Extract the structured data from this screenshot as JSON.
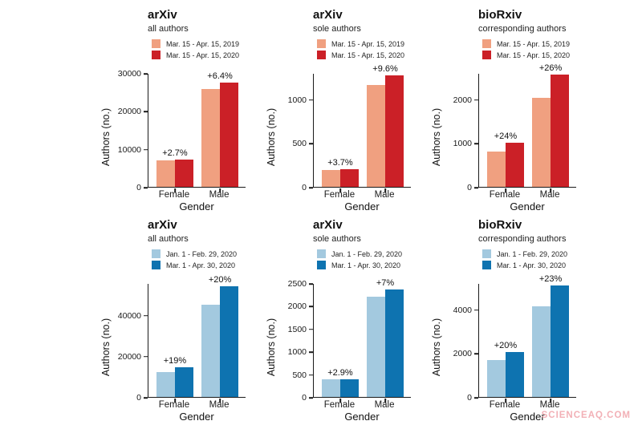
{
  "watermark": "SCIENCEAQ.COM",
  "chart_data": [
    {
      "type": "bar",
      "title": "arXiv",
      "subtitle": "all authors",
      "xlabel": "Gender",
      "ylabel": "Authors (no.)",
      "categories": [
        "Female",
        "Male"
      ],
      "series": [
        {
          "name": "Mar. 15 - Apr. 15, 2019",
          "color": "#F0A080",
          "values": [
            6900,
            25800
          ]
        },
        {
          "name": "Mar. 15 - Apr. 15, 2020",
          "color": "#CB2027",
          "values": [
            7090,
            27450
          ]
        }
      ],
      "pct_change": [
        "+2.7%",
        "+6.4%"
      ],
      "yticks": [
        0,
        10000,
        20000,
        30000
      ],
      "ylim": [
        0,
        30000
      ],
      "grid": false,
      "legend_position": "top"
    },
    {
      "type": "bar",
      "title": "arXiv",
      "subtitle": "sole authors",
      "xlabel": "Gender",
      "ylabel": "Authors (no.)",
      "categories": [
        "Female",
        "Male"
      ],
      "series": [
        {
          "name": "Mar. 15 - Apr. 15, 2019",
          "color": "#F0A080",
          "values": [
            190,
            1160
          ]
        },
        {
          "name": "Mar. 15 - Apr. 15, 2020",
          "color": "#CB2027",
          "values": [
            197,
            1271
          ]
        }
      ],
      "pct_change": [
        "+3.7%",
        "+9.6%"
      ],
      "yticks": [
        0,
        500,
        1000
      ],
      "ylim": [
        0,
        1300
      ],
      "grid": false,
      "legend_position": "top"
    },
    {
      "type": "bar",
      "title": "bioRxiv",
      "subtitle": "corresponding authors",
      "xlabel": "Gender",
      "ylabel": "Authors (no.)",
      "categories": [
        "Female",
        "Male"
      ],
      "series": [
        {
          "name": "Mar. 15 - Apr. 15, 2019",
          "color": "#F0A080",
          "values": [
            806,
            2030
          ]
        },
        {
          "name": "Mar. 15 - Apr. 15, 2020",
          "color": "#CB2027",
          "values": [
            1000,
            2558
          ]
        }
      ],
      "pct_change": [
        "+24%",
        "+26%"
      ],
      "yticks": [
        0,
        1000,
        2000
      ],
      "ylim": [
        0,
        2600
      ],
      "grid": false,
      "legend_position": "top"
    },
    {
      "type": "bar",
      "title": "arXiv",
      "subtitle": "all authors",
      "xlabel": "Gender",
      "ylabel": "Authors (no.)",
      "categories": [
        "Female",
        "Male"
      ],
      "series": [
        {
          "name": "Jan. 1 - Feb. 29, 2020",
          "color": "#A3C9DF",
          "values": [
            12000,
            45000
          ]
        },
        {
          "name": "Mar. 1 - Apr. 30, 2020",
          "color": "#0E73B0",
          "values": [
            14280,
            54000
          ]
        }
      ],
      "pct_change": [
        "+19%",
        "+20%"
      ],
      "yticks": [
        0,
        20000,
        40000
      ],
      "ylim": [
        0,
        55500
      ],
      "grid": false,
      "legend_position": "top"
    },
    {
      "type": "bar",
      "title": "arXiv",
      "subtitle": "sole authors",
      "xlabel": "Gender",
      "ylabel": "Authors (no.)",
      "categories": [
        "Female",
        "Male"
      ],
      "series": [
        {
          "name": "Jan. 1 - Feb. 29, 2020",
          "color": "#A3C9DF",
          "values": [
            380,
            2200
          ]
        },
        {
          "name": "Mar. 1 - Apr. 30, 2020",
          "color": "#0E73B0",
          "values": [
            391,
            2354
          ]
        }
      ],
      "pct_change": [
        "+2.9%",
        "+7%"
      ],
      "yticks": [
        0,
        500,
        1000,
        1500,
        2000,
        2500
      ],
      "ylim": [
        0,
        2500
      ],
      "grid": false,
      "legend_position": "top"
    },
    {
      "type": "bar",
      "title": "bioRxiv",
      "subtitle": "corresponding authors",
      "xlabel": "Gender",
      "ylabel": "Authors (no.)",
      "categories": [
        "Female",
        "Male"
      ],
      "series": [
        {
          "name": "Jan. 1 - Feb. 29, 2020",
          "color": "#A3C9DF",
          "values": [
            1700,
            4150
          ]
        },
        {
          "name": "Mar. 1 - Apr. 30, 2020",
          "color": "#0E73B0",
          "values": [
            2050,
            5100
          ]
        }
      ],
      "pct_change": [
        "+20%",
        "+23%"
      ],
      "yticks": [
        0,
        2000,
        4000
      ],
      "ylim": [
        0,
        5200
      ],
      "grid": false,
      "legend_position": "top"
    }
  ]
}
